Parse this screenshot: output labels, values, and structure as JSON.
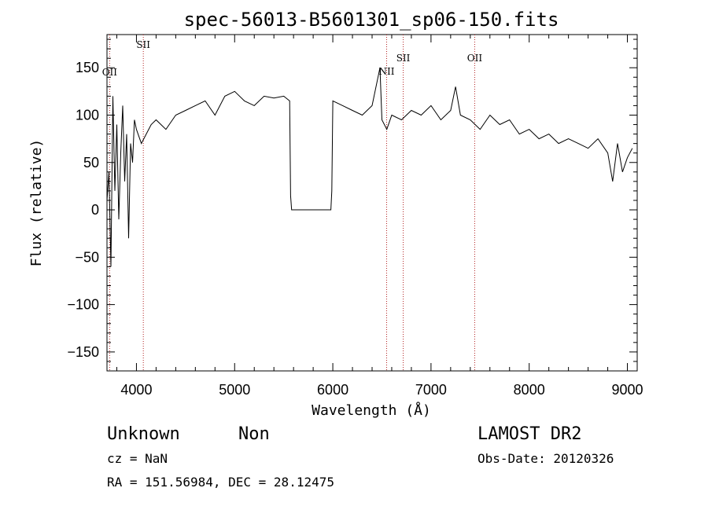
{
  "chart_data": {
    "type": "line",
    "title": "spec-56013-B5601301_sp06-150.fits",
    "xlabel": "Wavelength (Å)",
    "ylabel": "Flux (relative)",
    "xlim": [
      3700,
      9100
    ],
    "ylim": [
      -170,
      185
    ],
    "xticks": [
      4000,
      5000,
      6000,
      7000,
      8000,
      9000
    ],
    "yticks": [
      -150,
      -100,
      -50,
      0,
      50,
      100,
      150
    ],
    "grid": false,
    "series": [
      {
        "x": [
          3700,
          3720,
          3740,
          3760,
          3780,
          3800,
          3820,
          3840,
          3860,
          3880,
          3900,
          3920,
          3940,
          3960,
          3980,
          4000,
          4050,
          4100,
          4150,
          4200,
          4300,
          4400,
          4500,
          4600,
          4700,
          4800,
          4900,
          5000,
          5100,
          5200,
          5300,
          5400,
          5500,
          5560,
          5570,
          5580,
          5600,
          5700,
          5800,
          5900,
          5980,
          5990,
          6000,
          6100,
          6200,
          6300,
          6400,
          6480,
          6500,
          6550,
          6600,
          6700,
          6800,
          6900,
          7000,
          7100,
          7200,
          7250,
          7300,
          7400,
          7500,
          7600,
          7700,
          7800,
          7900,
          8000,
          8100,
          8200,
          8300,
          8400,
          8500,
          8600,
          8700,
          8800,
          8850,
          8900,
          8950,
          9000,
          9050
        ],
        "y": [
          10,
          40,
          -60,
          120,
          20,
          90,
          -10,
          60,
          110,
          30,
          80,
          -30,
          70,
          50,
          95,
          85,
          70,
          80,
          90,
          95,
          85,
          100,
          105,
          110,
          115,
          100,
          120,
          125,
          115,
          110,
          120,
          118,
          120,
          115,
          15,
          0,
          0,
          0,
          0,
          0,
          0,
          20,
          115,
          110,
          105,
          100,
          110,
          150,
          95,
          85,
          100,
          95,
          105,
          100,
          110,
          95,
          105,
          130,
          100,
          95,
          85,
          100,
          90,
          95,
          80,
          85,
          75,
          80,
          70,
          75,
          70,
          65,
          75,
          60,
          30,
          70,
          40,
          55,
          65
        ]
      }
    ],
    "emission_lines": [
      {
        "label": "OII",
        "x": 3727
      },
      {
        "label": "SII",
        "x": 4070
      },
      {
        "label": "NII",
        "x": 6548
      },
      {
        "label": "SII",
        "x": 6717
      },
      {
        "label": "OII",
        "x": 7445
      }
    ]
  },
  "info": {
    "object_type": "Unknown",
    "object_subtype": "Non",
    "cz": "cz = NaN",
    "coords": "RA = 151.56984, DEC =  28.12475",
    "survey": "LAMOST DR2",
    "obs_date": "Obs-Date: 20120326"
  }
}
